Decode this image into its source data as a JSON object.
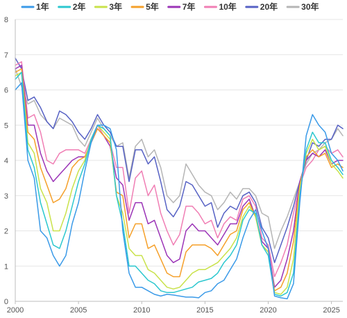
{
  "chart_data": {
    "type": "line",
    "title": "",
    "xlabel": "",
    "ylabel": "",
    "xlim": [
      2000,
      2025.9
    ],
    "ylim": [
      0,
      8
    ],
    "x_ticks": [
      2000,
      2005,
      2010,
      2015,
      2020,
      2025
    ],
    "x_tick_labels": [
      "2000",
      "2005",
      "2010",
      "2015",
      "2020",
      "2025"
    ],
    "y_ticks": [
      0,
      1,
      2,
      3,
      4,
      5,
      6,
      7,
      8
    ],
    "y_tick_labels": [
      "0",
      "1",
      "2",
      "3",
      "4",
      "5",
      "6",
      "7",
      "8"
    ],
    "grid": "horizontal",
    "legend_position": "top",
    "x": [
      2000.0,
      2000.5,
      2001.0,
      2001.5,
      2002.0,
      2002.5,
      2003.0,
      2003.5,
      2004.0,
      2004.5,
      2005.0,
      2005.5,
      2006.0,
      2006.5,
      2007.0,
      2007.5,
      2008.0,
      2008.5,
      2009.0,
      2009.5,
      2010.0,
      2010.5,
      2011.0,
      2011.5,
      2012.0,
      2012.5,
      2013.0,
      2013.5,
      2014.0,
      2014.5,
      2015.0,
      2015.5,
      2016.0,
      2016.5,
      2017.0,
      2017.5,
      2018.0,
      2018.5,
      2019.0,
      2019.5,
      2020.0,
      2020.5,
      2021.0,
      2021.5,
      2022.0,
      2022.5,
      2023.0,
      2023.5,
      2024.0,
      2024.5,
      2025.0,
      2025.5,
      2025.9
    ],
    "series": [
      {
        "name": "1年",
        "color": "#3a9ae8",
        "values": [
          6.0,
          6.2,
          4.0,
          3.5,
          2.0,
          1.8,
          1.3,
          1.0,
          1.3,
          2.2,
          2.8,
          3.7,
          4.5,
          5.0,
          5.0,
          4.9,
          4.3,
          2.0,
          0.8,
          0.4,
          0.4,
          0.3,
          0.2,
          0.15,
          0.2,
          0.18,
          0.15,
          0.12,
          0.12,
          0.1,
          0.25,
          0.3,
          0.5,
          0.6,
          0.9,
          1.2,
          1.8,
          2.3,
          2.6,
          2.0,
          1.5,
          0.15,
          0.1,
          0.07,
          0.5,
          2.8,
          4.7,
          5.3,
          5.0,
          4.8,
          4.2,
          4.0,
          3.7
        ]
      },
      {
        "name": "2年",
        "color": "#2bc7cf",
        "values": [
          6.3,
          6.5,
          4.3,
          3.8,
          2.8,
          2.2,
          1.6,
          1.5,
          2.0,
          2.7,
          3.4,
          3.9,
          4.6,
          5.0,
          4.9,
          4.7,
          3.0,
          2.2,
          1.0,
          1.0,
          0.8,
          0.6,
          0.5,
          0.3,
          0.25,
          0.25,
          0.3,
          0.35,
          0.4,
          0.55,
          0.6,
          0.65,
          0.8,
          1.1,
          1.3,
          1.6,
          2.3,
          2.6,
          2.5,
          1.6,
          1.3,
          0.2,
          0.15,
          0.25,
          0.8,
          3.0,
          4.3,
          4.8,
          4.5,
          4.5,
          4.0,
          3.8,
          3.6
        ]
      },
      {
        "name": "3年",
        "color": "#c9e24a",
        "values": [
          6.4,
          6.5,
          4.5,
          4.2,
          3.2,
          2.8,
          2.0,
          2.0,
          2.5,
          3.2,
          3.7,
          4.0,
          4.6,
          5.0,
          4.8,
          4.6,
          3.0,
          2.5,
          1.5,
          1.3,
          1.3,
          0.9,
          0.8,
          0.6,
          0.4,
          0.35,
          0.4,
          0.6,
          0.8,
          0.9,
          0.9,
          1.0,
          1.1,
          1.3,
          1.5,
          1.8,
          2.4,
          2.7,
          2.4,
          1.6,
          1.4,
          0.25,
          0.2,
          0.4,
          1.2,
          3.2,
          4.2,
          4.6,
          4.3,
          4.4,
          3.9,
          3.7,
          3.5
        ]
      },
      {
        "name": "5年",
        "color": "#f5a02a",
        "values": [
          6.5,
          6.6,
          4.8,
          4.6,
          3.8,
          3.3,
          2.8,
          2.9,
          3.2,
          3.8,
          4.0,
          4.1,
          4.5,
          4.9,
          4.7,
          4.5,
          3.1,
          3.0,
          1.8,
          2.2,
          2.2,
          1.5,
          1.6,
          1.2,
          0.8,
          0.7,
          0.7,
          1.4,
          1.6,
          1.6,
          1.6,
          1.5,
          1.3,
          1.6,
          1.9,
          2.0,
          2.6,
          2.8,
          2.4,
          1.6,
          1.4,
          0.3,
          0.4,
          0.8,
          1.7,
          3.3,
          4.1,
          4.3,
          4.1,
          4.2,
          3.8,
          3.9,
          3.8
        ]
      },
      {
        "name": "7年",
        "color": "#9b34b7",
        "values": [
          6.6,
          6.7,
          5.0,
          5.0,
          4.2,
          3.7,
          3.4,
          3.6,
          3.8,
          4.0,
          4.1,
          4.1,
          4.5,
          4.9,
          4.7,
          4.4,
          3.5,
          3.3,
          2.3,
          2.8,
          2.8,
          2.2,
          2.3,
          1.8,
          1.3,
          1.1,
          1.2,
          2.0,
          2.2,
          2.0,
          2.0,
          1.8,
          1.6,
          1.9,
          2.2,
          2.2,
          2.7,
          2.9,
          2.4,
          1.7,
          1.5,
          0.4,
          0.6,
          1.2,
          2.0,
          3.4,
          4.0,
          4.2,
          4.1,
          4.3,
          3.9,
          4.0,
          4.0
        ]
      },
      {
        "name": "10年",
        "color": "#f07eb4",
        "values": [
          6.7,
          6.8,
          5.2,
          5.3,
          4.8,
          4.0,
          3.9,
          4.2,
          4.3,
          4.3,
          4.3,
          4.2,
          4.6,
          5.0,
          4.7,
          4.5,
          3.8,
          3.8,
          2.5,
          3.5,
          3.7,
          3.0,
          3.3,
          2.5,
          2.0,
          1.6,
          1.9,
          2.7,
          2.7,
          2.5,
          2.2,
          2.3,
          1.8,
          2.2,
          2.4,
          2.3,
          2.9,
          3.0,
          2.7,
          1.8,
          1.6,
          0.7,
          1.1,
          1.6,
          2.5,
          3.3,
          3.8,
          4.0,
          4.3,
          4.4,
          4.2,
          4.3,
          4.1
        ]
      },
      {
        "name": "20年",
        "color": "#5661c4",
        "values": [
          6.9,
          6.6,
          5.7,
          5.8,
          5.5,
          5.1,
          4.9,
          5.4,
          5.3,
          5.1,
          4.8,
          4.6,
          4.9,
          5.3,
          5.0,
          4.8,
          4.4,
          4.4,
          3.4,
          4.3,
          4.3,
          3.9,
          4.1,
          3.4,
          2.6,
          2.4,
          2.7,
          3.4,
          3.3,
          3.0,
          2.7,
          2.8,
          2.1,
          2.5,
          2.7,
          2.6,
          3.0,
          3.1,
          2.8,
          2.1,
          1.8,
          1.1,
          1.6,
          2.1,
          2.7,
          3.4,
          4.0,
          4.5,
          4.4,
          4.6,
          4.6,
          5.0,
          4.9
        ]
      },
      {
        "name": "30年",
        "color": "#b5b5b5",
        "values": [
          6.6,
          6.1,
          5.6,
          5.7,
          5.3,
          5.1,
          4.9,
          5.2,
          5.1,
          5.0,
          4.6,
          4.4,
          4.8,
          5.2,
          4.9,
          4.7,
          4.4,
          4.5,
          3.5,
          4.4,
          4.6,
          4.1,
          4.3,
          3.8,
          3.0,
          2.8,
          3.0,
          3.9,
          3.6,
          3.3,
          3.1,
          3.0,
          2.6,
          2.8,
          3.1,
          2.9,
          3.2,
          3.2,
          3.0,
          2.5,
          2.4,
          1.5,
          2.0,
          2.4,
          2.9,
          3.4,
          3.9,
          4.2,
          4.3,
          4.5,
          4.6,
          4.9,
          4.7
        ]
      }
    ]
  }
}
